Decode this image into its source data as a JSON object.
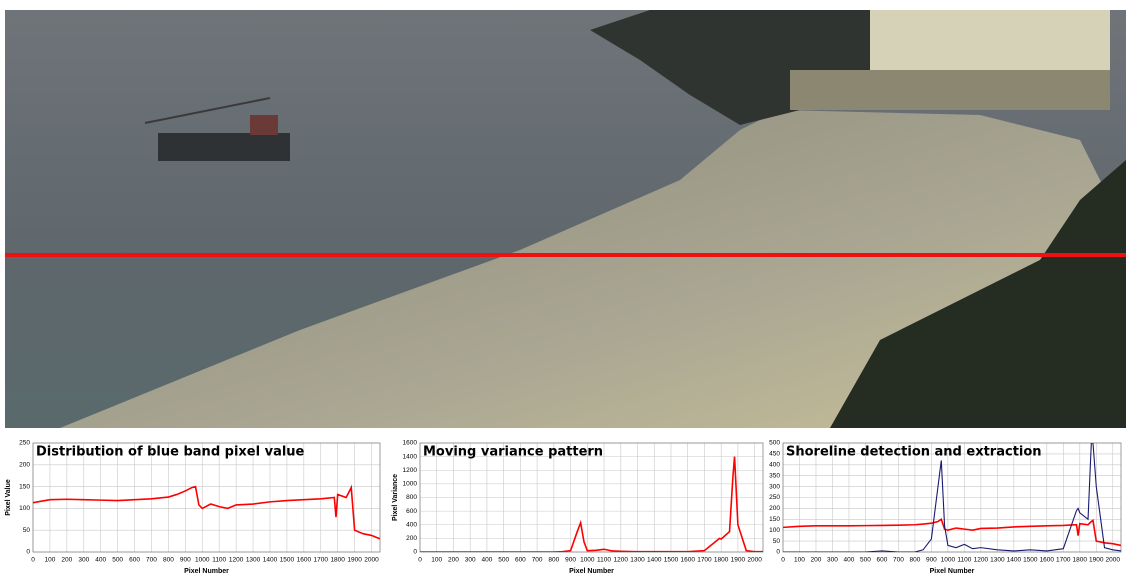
{
  "chart_data": [
    {
      "type": "line",
      "title": "Distribution of blue band pixel value",
      "x_label": "Pixel Number",
      "y_label": "Pixel Value",
      "x": [
        0,
        100,
        200,
        300,
        400,
        500,
        600,
        700,
        800,
        850,
        900,
        940,
        960,
        980,
        1000,
        1050,
        1100,
        1150,
        1200,
        1300,
        1400,
        1500,
        1600,
        1700,
        1780,
        1790,
        1800,
        1850,
        1870,
        1880,
        1900,
        1950,
        2000,
        2050
      ],
      "series": [
        {
          "color": "#ff0000",
          "values": [
            113,
            120,
            121,
            120,
            119,
            118,
            120,
            122,
            126,
            132,
            140,
            148,
            150,
            108,
            100,
            110,
            104,
            100,
            108,
            110,
            115,
            118,
            120,
            122,
            125,
            80,
            132,
            125,
            140,
            148,
            50,
            42,
            38,
            30
          ]
        }
      ],
      "xlim": [
        0,
        2050
      ],
      "xticks": [
        0,
        100,
        200,
        300,
        400,
        500,
        600,
        700,
        800,
        900,
        1000,
        1100,
        1200,
        1300,
        1400,
        1500,
        1600,
        1700,
        1800,
        1900,
        2000
      ],
      "ylim": [
        0,
        250
      ],
      "yticks": [
        0,
        50,
        100,
        150,
        200,
        250
      ],
      "grid": true
    },
    {
      "type": "line",
      "title": "Moving variance pattern",
      "x_label": "Pixel Number",
      "y_label": "Pixel Variance",
      "x": [
        0,
        100,
        200,
        300,
        400,
        500,
        600,
        700,
        800,
        850,
        900,
        940,
        960,
        980,
        1000,
        1050,
        1100,
        1150,
        1200,
        1300,
        1400,
        1500,
        1600,
        1700,
        1780,
        1790,
        1800,
        1850,
        1870,
        1880,
        1900,
        1950,
        2000,
        2050
      ],
      "series": [
        {
          "color": "#ff0000",
          "values": [
            0,
            0,
            0,
            0,
            0,
            0,
            0,
            0,
            0,
            5,
            20,
            300,
            430,
            150,
            20,
            25,
            40,
            15,
            10,
            5,
            5,
            5,
            5,
            20,
            180,
            200,
            190,
            300,
            1100,
            1400,
            400,
            20,
            5,
            5
          ]
        }
      ],
      "xlim": [
        0,
        2050
      ],
      "xticks": [
        0,
        100,
        200,
        300,
        400,
        500,
        600,
        700,
        800,
        900,
        1000,
        1100,
        1200,
        1300,
        1400,
        1500,
        1600,
        1700,
        1800,
        1900,
        2000
      ],
      "ylim": [
        0,
        1600
      ],
      "yticks": [
        0,
        200,
        400,
        600,
        800,
        1000,
        1200,
        1400,
        1600
      ],
      "grid": true
    },
    {
      "type": "line",
      "title": "Shoreline detection and extraction",
      "x_label": "Pixel Number",
      "x": [
        0,
        100,
        200,
        300,
        400,
        500,
        600,
        700,
        800,
        850,
        900,
        940,
        960,
        980,
        1000,
        1050,
        1100,
        1150,
        1200,
        1300,
        1400,
        1500,
        1600,
        1700,
        1780,
        1790,
        1800,
        1850,
        1870,
        1880,
        1900,
        1950,
        2000,
        2050
      ],
      "series": [
        {
          "color": "#ff0000",
          "values": [
            113,
            118,
            120,
            120,
            120,
            121,
            122,
            123,
            125,
            128,
            132,
            140,
            150,
            105,
            100,
            110,
            105,
            100,
            108,
            110,
            115,
            118,
            120,
            122,
            125,
            75,
            130,
            125,
            140,
            145,
            50,
            42,
            38,
            30
          ]
        },
        {
          "color": "#1a1a6e",
          "values": [
            0,
            0,
            0,
            0,
            0,
            0,
            5,
            0,
            0,
            10,
            60,
            300,
            420,
            120,
            30,
            20,
            35,
            15,
            20,
            10,
            5,
            10,
            5,
            15,
            190,
            200,
            180,
            150,
            500,
            500,
            300,
            20,
            10,
            5
          ]
        }
      ],
      "xlim": [
        0,
        2050
      ],
      "xticks": [
        0,
        100,
        200,
        300,
        400,
        500,
        600,
        700,
        800,
        900,
        1000,
        1100,
        1200,
        1300,
        1400,
        1500,
        1600,
        1700,
        1800,
        1900,
        2000
      ],
      "ylim": [
        0,
        500
      ],
      "yticks": [
        0,
        50,
        100,
        150,
        200,
        250,
        300,
        350,
        400,
        450,
        500
      ],
      "grid": true
    }
  ]
}
